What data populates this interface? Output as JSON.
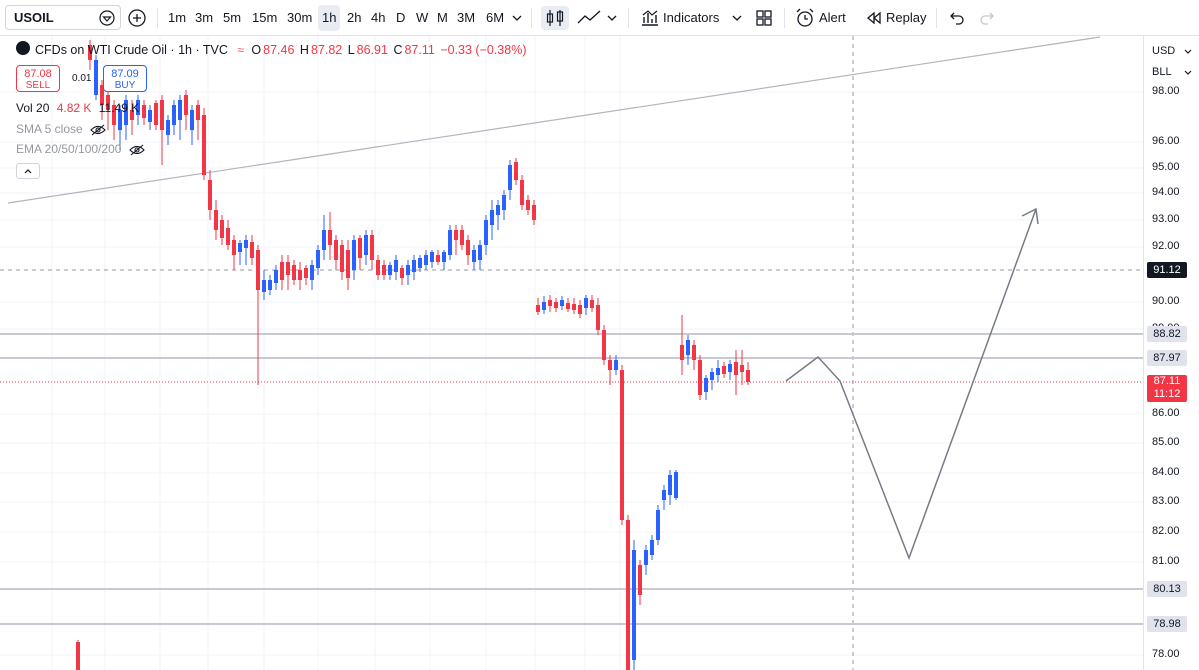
{
  "toolbar": {
    "symbol": "USOIL",
    "timeframes": [
      "1m",
      "3m",
      "5m",
      "15m",
      "30m",
      "1h",
      "2h",
      "4h",
      "D",
      "W",
      "M",
      "3M",
      "6M"
    ],
    "active_timeframe": "1h",
    "indicators_label": "Indicators",
    "alert_label": "Alert",
    "replay_label": "Replay"
  },
  "legend": {
    "title": "CFDs on WTI Crude Oil · 1h · TVC",
    "open_label": "O",
    "open": "87.46",
    "high_label": "H",
    "high": "87.82",
    "low_label": "L",
    "low": "86.91",
    "close_label": "C",
    "close": "87.11",
    "change": "−0.33 (−0.38%)",
    "sell_price": "87.08",
    "sell_label": "SELL",
    "buy_price": "87.09",
    "buy_label": "BUY",
    "spread": "0.01",
    "vol_label": "Vol 20",
    "vol_a": "4.82 K",
    "vol_b": "11.49 K",
    "sma_label": "SMA 5 close",
    "ema_label": "EMA 20/50/100/200"
  },
  "price_axis": {
    "currency": "USD",
    "unit": "BLL",
    "ticks": [
      "98.00",
      "96.00",
      "95.00",
      "94.00",
      "93.00",
      "92.00",
      "90.00",
      "89.00",
      "86.00",
      "85.00",
      "84.00",
      "83.00",
      "82.00",
      "81.00",
      "78.00"
    ],
    "levels": [
      {
        "label": "91.12",
        "style": "dark"
      },
      {
        "label": "88.82",
        "style": "gray"
      },
      {
        "label": "87.97",
        "style": "gray"
      },
      {
        "label": "80.13",
        "style": "gray"
      },
      {
        "label": "78.98",
        "style": "gray"
      }
    ],
    "current_price": "87.11",
    "countdown": "11:12"
  },
  "colors": {
    "up": "#2962ff",
    "down": "#f23645",
    "level": "#c8cad3",
    "projection": "#787b86"
  }
}
